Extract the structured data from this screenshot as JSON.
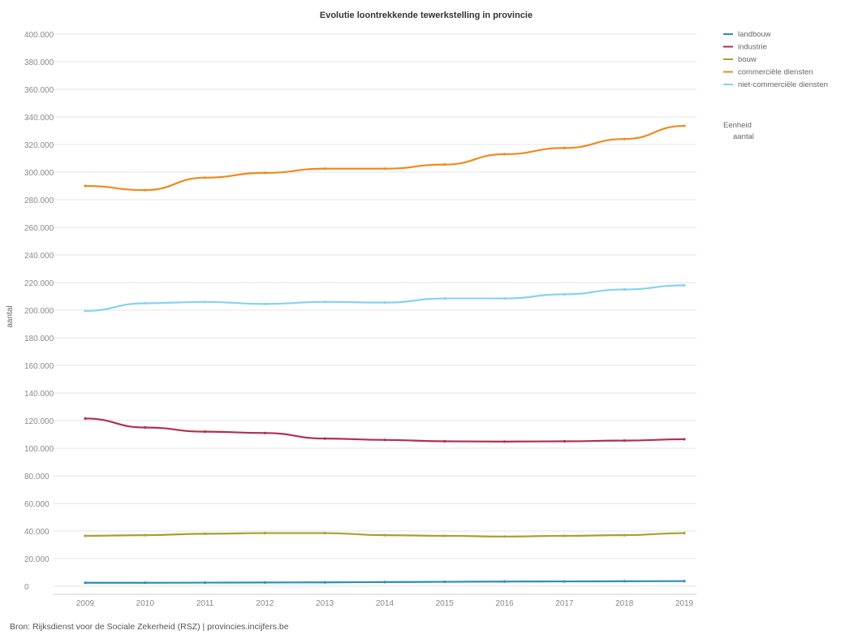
{
  "chart_data": {
    "type": "line",
    "title": "Evolutie loontrekkende tewerkstelling in provincie",
    "xlabel": "",
    "ylabel": "aantal",
    "x": [
      "2009",
      "2010",
      "2011",
      "2012",
      "2013",
      "2014",
      "2015",
      "2016",
      "2017",
      "2018",
      "2019"
    ],
    "ylim": [
      0,
      400000
    ],
    "yticks": [
      0,
      20000,
      40000,
      60000,
      80000,
      100000,
      120000,
      140000,
      160000,
      180000,
      200000,
      220000,
      240000,
      260000,
      280000,
      300000,
      320000,
      340000,
      360000,
      380000,
      400000
    ],
    "ytick_labels": [
      "0",
      "20.000",
      "40.000",
      "60.000",
      "80.000",
      "100.000",
      "120.000",
      "140.000",
      "160.000",
      "180.000",
      "200.000",
      "220.000",
      "240.000",
      "260.000",
      "280.000",
      "300.000",
      "320.000",
      "340.000",
      "360.000",
      "380.000",
      "400.000"
    ],
    "grid": true,
    "legend_position": "top-right",
    "series": [
      {
        "name": "landbouw",
        "color": "#2a90b8",
        "values": [
          2500,
          2500,
          2600,
          2700,
          2800,
          3000,
          3200,
          3400,
          3500,
          3600,
          3700
        ]
      },
      {
        "name": "industrie",
        "color": "#b0304e",
        "values": [
          121500,
          115000,
          112000,
          111000,
          107000,
          106000,
          105000,
          104800,
          105000,
          105500,
          106500
        ]
      },
      {
        "name": "bouw",
        "color": "#a8a030",
        "values": [
          36500,
          37000,
          38000,
          38500,
          38500,
          37000,
          36500,
          36000,
          36500,
          37000,
          38500
        ]
      },
      {
        "name": "commerciële diensten",
        "color": "#f08a1e",
        "values": [
          290000,
          287000,
          296000,
          299500,
          302500,
          302500,
          305500,
          313000,
          317500,
          324000,
          333500
        ]
      },
      {
        "name": "niet-commerciële diensten",
        "color": "#86d2f0",
        "values": [
          199500,
          205000,
          206000,
          204500,
          206000,
          205500,
          208500,
          208500,
          211500,
          215000,
          218000
        ]
      }
    ],
    "legend_extra": {
      "heading": "Eenheid",
      "item": "aantal"
    }
  },
  "source": "Bron: Rijksdienst voor de Sociale Zekerheid (RSZ) | provincies.incijfers.be"
}
